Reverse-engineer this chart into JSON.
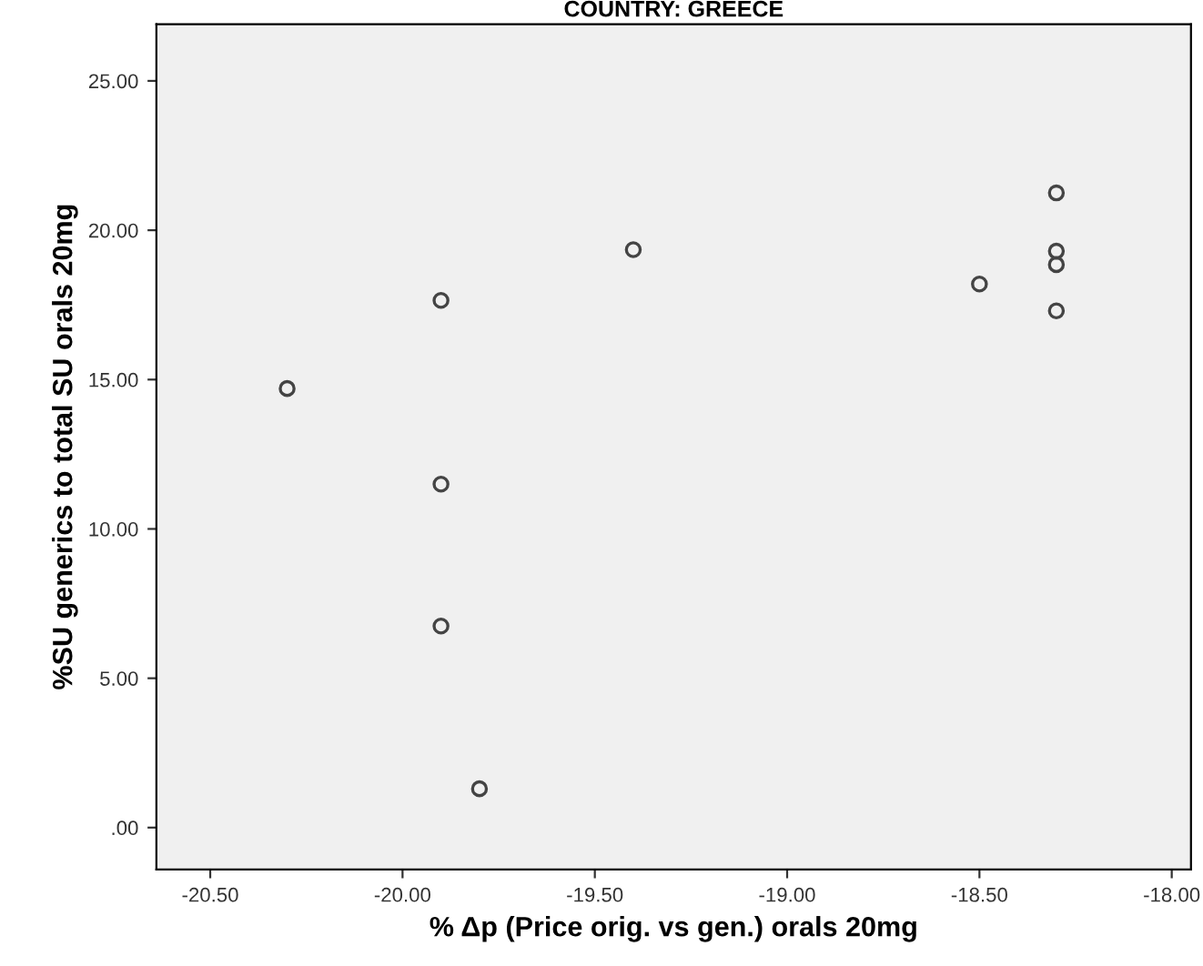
{
  "chart_data": {
    "type": "scatter",
    "title": "COUNTRY: GREECE",
    "xlabel": "% Δp (Price orig. vs gen.) orals 20mg",
    "ylabel": "%SU generics to total SU orals 20mg",
    "x": [
      -20.3,
      -19.9,
      -19.9,
      -19.9,
      -19.8,
      -19.4,
      -18.5,
      -18.3,
      -18.3,
      -18.3,
      -18.3
    ],
    "values": [
      14.7,
      17.65,
      11.5,
      6.75,
      1.3,
      19.35,
      18.2,
      21.25,
      19.3,
      18.85,
      17.3
    ],
    "color": "#444444",
    "marker": "circle",
    "grid": false,
    "xlim": [
      -20.64,
      -17.95
    ],
    "xticks": [
      {
        "value": -20.5,
        "label": "-20.50"
      },
      {
        "value": -20.0,
        "label": "-20.00"
      },
      {
        "value": -19.5,
        "label": "-19.50"
      },
      {
        "value": -19.0,
        "label": "-19.00"
      },
      {
        "value": -18.5,
        "label": "-18.50"
      },
      {
        "value": -18.0,
        "label": "-18.00"
      }
    ],
    "ylim": [
      -1.4,
      26.9
    ],
    "yticks": [
      {
        "value": 0,
        "label": ".00"
      },
      {
        "value": 5,
        "label": "5.00"
      },
      {
        "value": 10,
        "label": "10.00"
      },
      {
        "value": 15,
        "label": "15.00"
      },
      {
        "value": 20,
        "label": "20.00"
      },
      {
        "value": 25,
        "label": "25.00"
      }
    ]
  }
}
